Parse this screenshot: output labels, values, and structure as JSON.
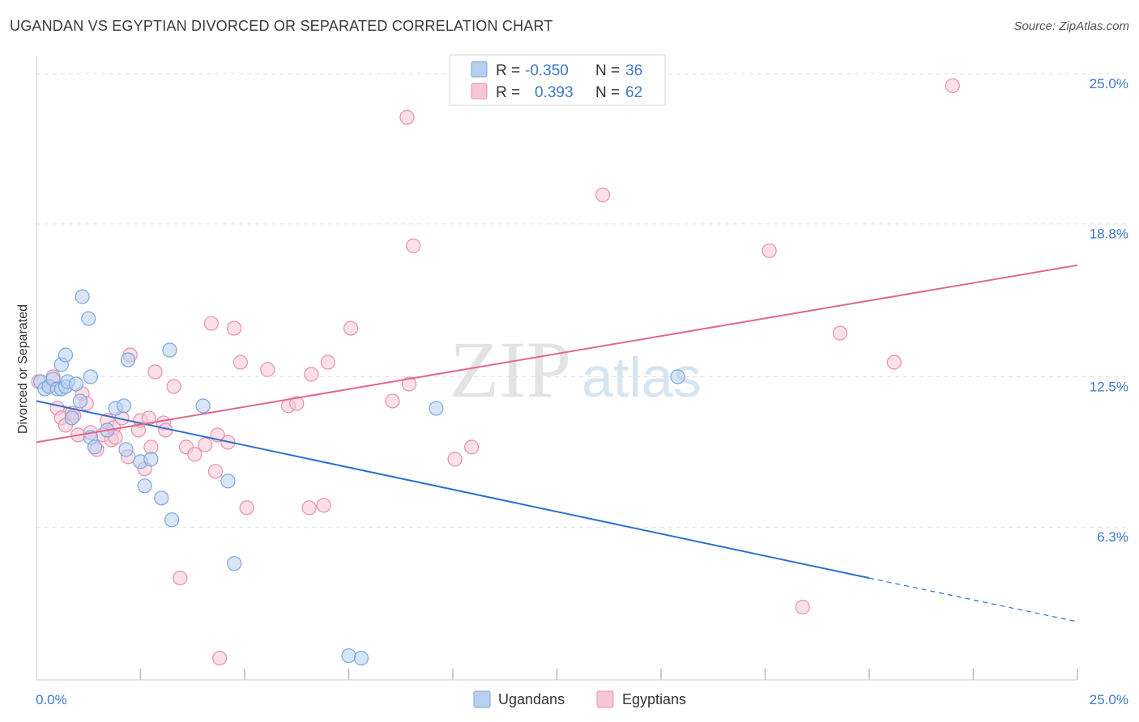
{
  "title": "UGANDAN VS EGYPTIAN DIVORCED OR SEPARATED CORRELATION CHART",
  "source": "Source: ZipAtlas.com",
  "watermark": {
    "zip": "ZIP",
    "atlas": "atlas"
  },
  "legend": {
    "rows": [
      {
        "r_label": "R =",
        "r_value": "-0.350",
        "n_label": "N =",
        "n_value": "36"
      },
      {
        "r_label": "R =",
        "r_value": "0.393",
        "n_label": "N =",
        "n_value": "62"
      }
    ]
  },
  "bottom_legend": {
    "ugandans": "Ugandans",
    "egyptians": "Egyptians"
  },
  "colors": {
    "blue_fill": "#b8d0f0",
    "blue_stroke": "#7aa6e0",
    "blue_line": "#2f6fce",
    "pink_fill": "#f7c6d5",
    "pink_stroke": "#e890ac",
    "pink_line": "#e06890",
    "tick_text": "#3d78c8",
    "grid": "#e0e0e0"
  },
  "chart_data": {
    "type": "scatter",
    "title": "UGANDAN VS EGYPTIAN DIVORCED OR SEPARATED CORRELATION CHART",
    "xlabel": "",
    "ylabel": "Divorced or Separated",
    "xlim": [
      0,
      25
    ],
    "ylim": [
      0,
      25.7
    ],
    "x_tick_labels": {
      "left": "0.0%",
      "right": "25.0%"
    },
    "y_ticks": [
      {
        "value": 6.3,
        "label": "6.3%"
      },
      {
        "value": 12.5,
        "label": "12.5%"
      },
      {
        "value": 18.8,
        "label": "18.8%"
      },
      {
        "value": 25.0,
        "label": "25.0%"
      }
    ],
    "series": [
      {
        "name": "Ugandans",
        "r": -0.35,
        "n": 36,
        "points": [
          [
            0.1,
            12.3
          ],
          [
            0.2,
            12.0
          ],
          [
            0.3,
            12.1
          ],
          [
            0.4,
            12.4
          ],
          [
            0.5,
            12.0
          ],
          [
            0.6,
            12.0
          ],
          [
            0.6,
            13.0
          ],
          [
            0.7,
            13.4
          ],
          [
            0.7,
            12.1
          ],
          [
            0.75,
            12.3
          ],
          [
            0.85,
            10.8
          ],
          [
            0.95,
            12.2
          ],
          [
            1.05,
            11.5
          ],
          [
            1.1,
            15.8
          ],
          [
            1.25,
            14.9
          ],
          [
            1.3,
            12.5
          ],
          [
            1.3,
            10.0
          ],
          [
            1.4,
            9.6
          ],
          [
            1.7,
            10.3
          ],
          [
            1.9,
            11.2
          ],
          [
            2.1,
            11.3
          ],
          [
            2.15,
            9.5
          ],
          [
            2.2,
            13.2
          ],
          [
            2.5,
            9.0
          ],
          [
            2.6,
            8.0
          ],
          [
            2.75,
            9.1
          ],
          [
            3.0,
            7.5
          ],
          [
            3.2,
            13.6
          ],
          [
            3.25,
            6.6
          ],
          [
            4.0,
            11.3
          ],
          [
            4.6,
            8.2
          ],
          [
            4.75,
            4.8
          ],
          [
            7.5,
            1.0
          ],
          [
            7.8,
            0.9
          ],
          [
            9.6,
            11.2
          ],
          [
            15.4,
            12.5
          ]
        ],
        "trend": {
          "x0": 0,
          "y0": 11.5,
          "x1": 20.0,
          "y1": 4.2,
          "dash_x1": 25.0,
          "dash_y1": 2.4
        }
      },
      {
        "name": "Egyptians",
        "r": 0.393,
        "n": 62,
        "points": [
          [
            0.05,
            12.3
          ],
          [
            0.3,
            12.1
          ],
          [
            0.4,
            12.5
          ],
          [
            0.5,
            11.2
          ],
          [
            0.6,
            10.8
          ],
          [
            0.7,
            10.5
          ],
          [
            0.85,
            11.0
          ],
          [
            0.9,
            10.9
          ],
          [
            1.0,
            10.1
          ],
          [
            1.1,
            11.8
          ],
          [
            1.2,
            11.4
          ],
          [
            1.3,
            10.2
          ],
          [
            1.45,
            9.5
          ],
          [
            1.6,
            10.1
          ],
          [
            1.7,
            10.7
          ],
          [
            1.8,
            9.9
          ],
          [
            1.85,
            10.4
          ],
          [
            1.9,
            10.0
          ],
          [
            2.05,
            10.8
          ],
          [
            2.2,
            9.2
          ],
          [
            2.25,
            13.4
          ],
          [
            2.45,
            10.3
          ],
          [
            2.5,
            10.7
          ],
          [
            2.6,
            8.7
          ],
          [
            2.7,
            10.8
          ],
          [
            2.75,
            9.6
          ],
          [
            2.85,
            12.7
          ],
          [
            3.05,
            10.6
          ],
          [
            3.1,
            10.3
          ],
          [
            3.3,
            12.1
          ],
          [
            3.45,
            4.2
          ],
          [
            3.6,
            9.6
          ],
          [
            3.8,
            9.3
          ],
          [
            4.05,
            9.7
          ],
          [
            4.2,
            14.7
          ],
          [
            4.3,
            8.6
          ],
          [
            4.35,
            10.1
          ],
          [
            4.4,
            0.9
          ],
          [
            4.6,
            9.8
          ],
          [
            4.75,
            14.5
          ],
          [
            4.9,
            13.1
          ],
          [
            5.05,
            7.1
          ],
          [
            5.55,
            12.8
          ],
          [
            6.05,
            11.3
          ],
          [
            6.25,
            11.4
          ],
          [
            6.55,
            7.1
          ],
          [
            6.6,
            12.6
          ],
          [
            6.9,
            7.2
          ],
          [
            7.0,
            13.1
          ],
          [
            7.55,
            14.5
          ],
          [
            8.55,
            11.5
          ],
          [
            8.9,
            23.2
          ],
          [
            8.95,
            12.2
          ],
          [
            9.05,
            17.9
          ],
          [
            10.05,
            9.1
          ],
          [
            10.45,
            9.6
          ],
          [
            13.6,
            20.0
          ],
          [
            17.6,
            17.7
          ],
          [
            18.4,
            3.0
          ],
          [
            19.3,
            14.3
          ],
          [
            20.6,
            13.1
          ],
          [
            22.0,
            24.5
          ]
        ],
        "trend": {
          "x0": 0,
          "y0": 9.8,
          "x1": 25.0,
          "y1": 17.1
        }
      }
    ]
  }
}
